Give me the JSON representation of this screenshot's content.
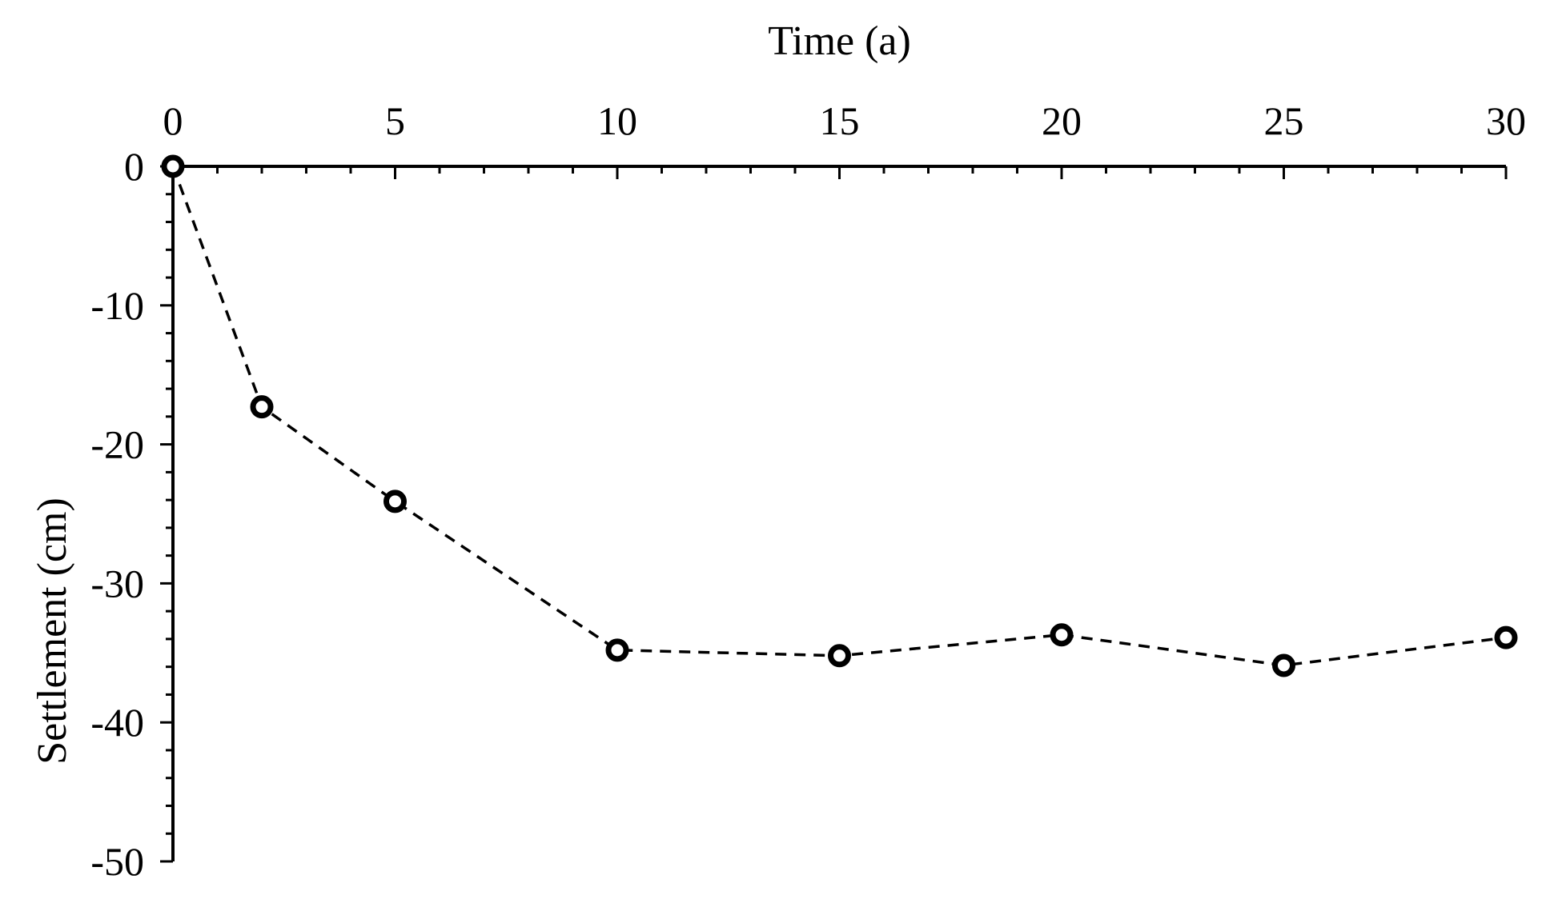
{
  "chart_data": {
    "type": "line",
    "xlabel": "Time (a)",
    "ylabel": "Settlement (cm)",
    "xlim": [
      0,
      30
    ],
    "ylim": [
      -50,
      0
    ],
    "x_ticks": [
      0,
      5,
      10,
      15,
      20,
      25,
      30
    ],
    "y_ticks": [
      0,
      -10,
      -20,
      -30,
      -40,
      -50
    ],
    "x_axis_position": "top",
    "grid": false,
    "series": [
      {
        "line_style": "dashed",
        "marker": "open-circle",
        "color": "#000000",
        "x": [
          0,
          2,
          5,
          10,
          15,
          20,
          25,
          30
        ],
        "y": [
          0,
          -17.3,
          -24.1,
          -34.8,
          -35.2,
          -33.7,
          -35.9,
          -33.9
        ]
      }
    ]
  }
}
